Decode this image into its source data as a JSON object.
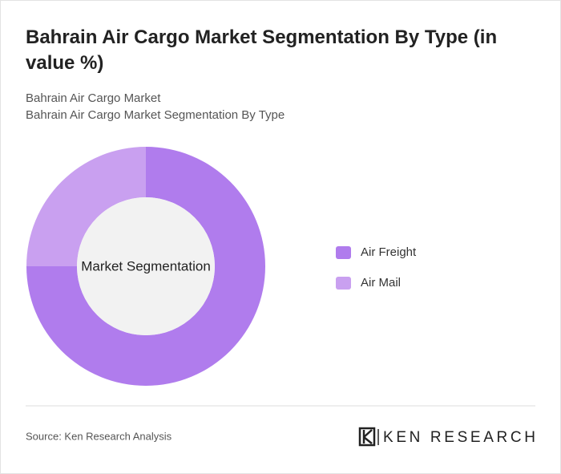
{
  "chart_data": {
    "type": "donut",
    "title": "Bahrain Air Cargo Market Segmentation By Type (in value %)",
    "subtitle": [
      "Bahrain Air Cargo Market",
      "Bahrain Air Cargo Market Segmentation By Type"
    ],
    "center_label": "Market Segmentation",
    "categories": [
      "Air Freight",
      "Air Mail"
    ],
    "values": [
      75,
      25
    ],
    "colors": [
      "#b07ced",
      "#c9a0f0"
    ],
    "legend": "right"
  },
  "footer": {
    "source": "Source: Ken Research Analysis",
    "logo": "KEN RESEARCH"
  }
}
